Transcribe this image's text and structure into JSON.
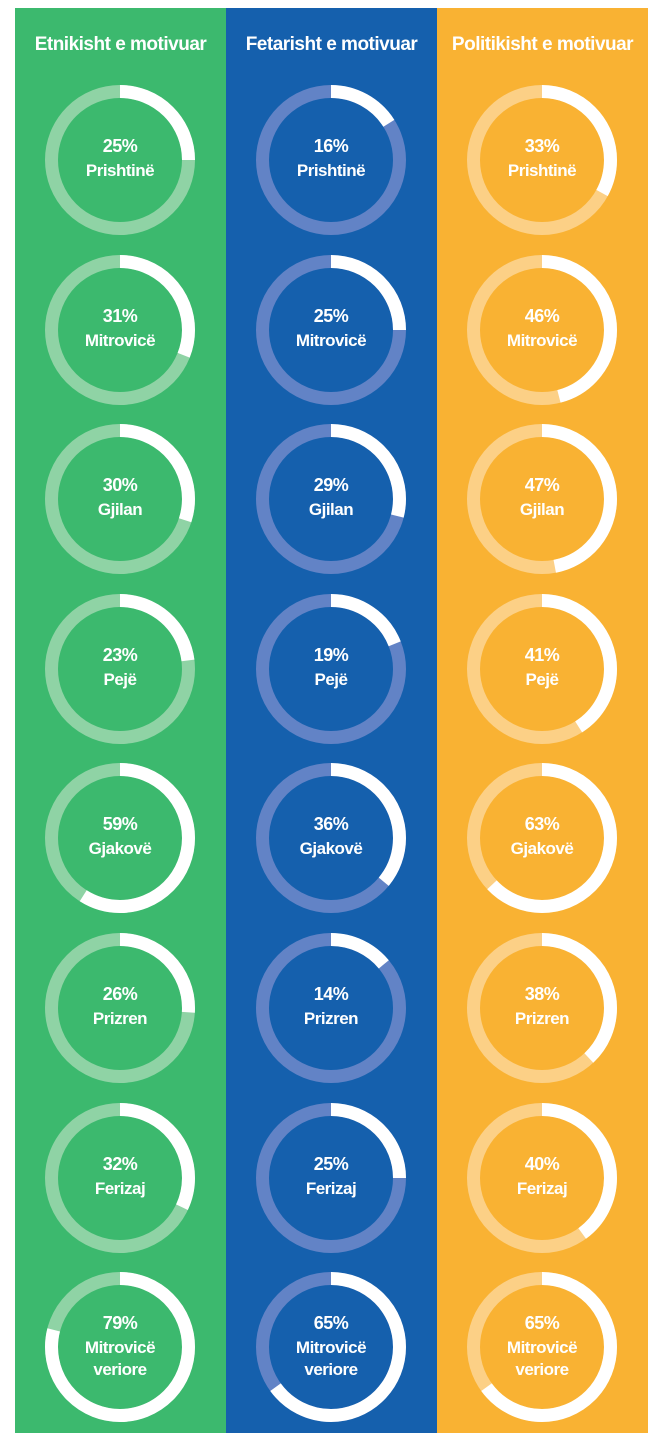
{
  "chart_data": [
    {
      "type": "donut",
      "title": "Etnikisht e motivuar",
      "color": "#3cb96e",
      "track_color": "#8fd3a5",
      "arc_color": "#ffffff",
      "categories": [
        "Prishtinë",
        "Mitrovicë",
        "Gjilan",
        "Pejë",
        "Gjakovë",
        "Prizren",
        "Ferizaj",
        "Mitrovicë veriore"
      ],
      "values": [
        25,
        31,
        30,
        23,
        59,
        26,
        32,
        79
      ],
      "value_labels": [
        "25%",
        "31%",
        "30%",
        "23%",
        "59%",
        "26%",
        "32%",
        "79%"
      ]
    },
    {
      "type": "donut",
      "title": "Fetarisht e motivuar",
      "color": "#1560ad",
      "track_color": "#6283c6",
      "arc_color": "#ffffff",
      "categories": [
        "Prishtinë",
        "Mitrovicë",
        "Gjilan",
        "Pejë",
        "Gjakovë",
        "Prizren",
        "Ferizaj",
        "Mitrovicë veriore"
      ],
      "values": [
        16,
        25,
        29,
        19,
        36,
        14,
        25,
        65
      ],
      "value_labels": [
        "16%",
        "25%",
        "29%",
        "19%",
        "36%",
        "14%",
        "25%",
        "65%"
      ]
    },
    {
      "type": "donut",
      "title": "Politikisht e motivuar",
      "color": "#f9b233",
      "track_color": "#fcd086",
      "arc_color": "#ffffff",
      "categories": [
        "Prishtinë",
        "Mitrovicë",
        "Gjilan",
        "Pejë",
        "Gjakovë",
        "Prizren",
        "Ferizaj",
        "Mitrovicë veriore"
      ],
      "values": [
        33,
        46,
        47,
        41,
        63,
        38,
        40,
        65
      ],
      "value_labels": [
        "33%",
        "46%",
        "47%",
        "41%",
        "63%",
        "38%",
        "40%",
        "65%"
      ]
    }
  ]
}
